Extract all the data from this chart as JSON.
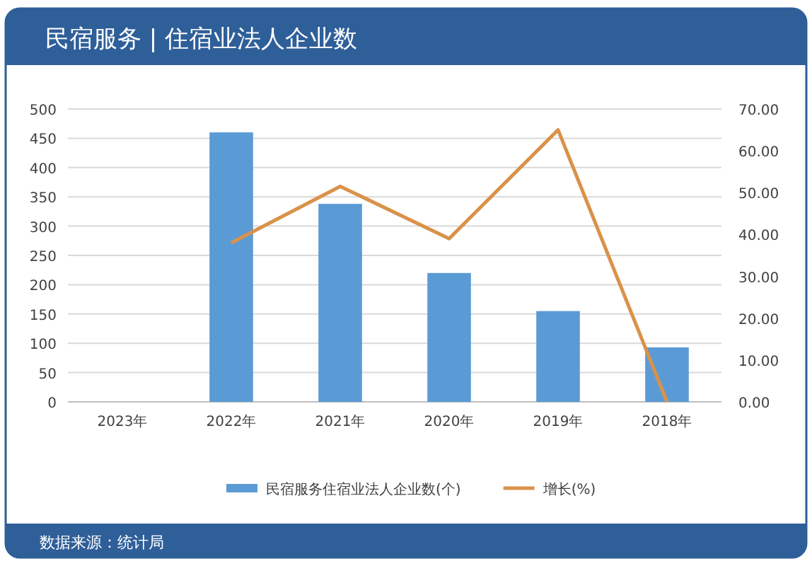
{
  "chart_data": {
    "type": "bar",
    "title": "民宿服务 | 住宿业法人企业数",
    "categories": [
      "2023年",
      "2022年",
      "2021年",
      "2020年",
      "2019年",
      "2018年"
    ],
    "series": [
      {
        "name": "民宿服务住宿业法人企业数(个)",
        "color": "#5b9bd5",
        "values": [
          null,
          460,
          338,
          220,
          155,
          93
        ]
      },
      {
        "name": "增长(%)",
        "type": "line",
        "axis": "y2",
        "color": "#d9924a",
        "values": [
          null,
          38,
          51.5,
          39,
          65,
          0
        ]
      }
    ],
    "ylim": [
      0,
      500
    ],
    "yticks": [
      0,
      50,
      100,
      150,
      200,
      250,
      300,
      350,
      400,
      450,
      500
    ],
    "y2lim": [
      0,
      70
    ],
    "y2ticks": [
      {
        "value": 0,
        "label": "0.00"
      },
      {
        "value": 10,
        "label": "10.00"
      },
      {
        "value": 20,
        "label": "20.00"
      },
      {
        "value": 30,
        "label": "30.00"
      },
      {
        "value": 40,
        "label": "40.00"
      },
      {
        "value": 50,
        "label": "50.00"
      },
      {
        "value": 60,
        "label": "60.00"
      },
      {
        "value": 70,
        "label": "70.00"
      }
    ],
    "grid": "y",
    "legend": "bottom",
    "marker": "none",
    "annotations": [
      "数据来源：统计局"
    ]
  }
}
